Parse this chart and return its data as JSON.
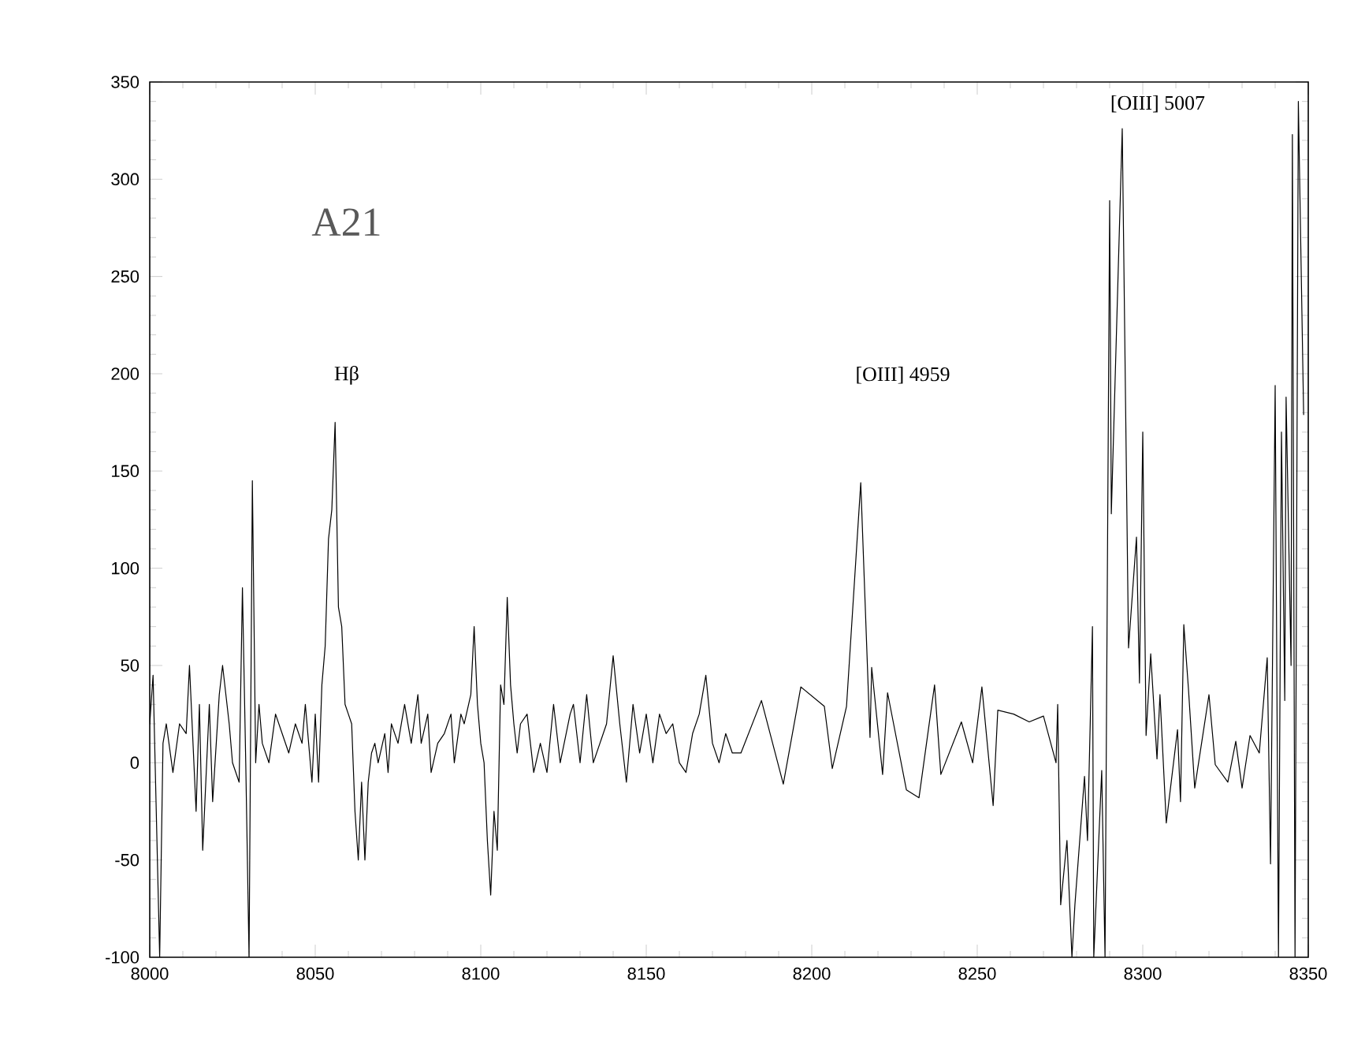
{
  "chart_data": {
    "type": "line",
    "xlim": [
      8000,
      8350
    ],
    "ylim": [
      -100,
      350
    ],
    "xticks": [
      8000,
      8050,
      8100,
      8150,
      8200,
      8250,
      8300,
      8350
    ],
    "yticks": [
      -100,
      -50,
      0,
      50,
      100,
      150,
      200,
      250,
      300,
      350
    ],
    "grid": false,
    "marker": "none",
    "line_style": "solid",
    "annotations": [
      "A21",
      "Hβ",
      "[OIII] 4959",
      "[OIII] 5007"
    ],
    "series": [
      {
        "color": "#000000",
        "x": [
          8000,
          8001,
          8003,
          8004,
          8005,
          8007,
          8009,
          8011,
          8012,
          8014,
          8015,
          8016,
          8018,
          8019,
          8021,
          8022,
          8024,
          8025,
          8027,
          8028,
          8029,
          8030,
          8031,
          8032,
          8033,
          8034,
          8036,
          8038,
          8040,
          8042,
          8044,
          8046,
          8047,
          8049,
          8050,
          8051,
          8052,
          8053,
          8054,
          8055,
          8056,
          8057,
          8058,
          8059,
          8060,
          8061,
          8062,
          8063,
          8064,
          8065,
          8066,
          8067,
          8068,
          8069,
          8071,
          8072,
          8073,
          8075,
          8077,
          8079,
          8081,
          8082,
          8084,
          8085,
          8087,
          8089,
          8091,
          8092,
          8094,
          8095,
          8097,
          8098,
          8099,
          8100,
          8101,
          8102,
          8103,
          8104,
          8105,
          8106,
          8107,
          8108,
          8109,
          8110,
          8111,
          8112,
          8114,
          8116,
          8118,
          8120,
          8122,
          8124,
          8127,
          8128,
          8130,
          8132,
          8134,
          8136,
          8138,
          8140,
          8142,
          8144,
          8146,
          8148,
          8150,
          8152,
          8154,
          8156,
          8158,
          8160,
          8162,
          8164,
          8166,
          8168,
          8170,
          8172,
          8174,
          8176,
          8178.6,
          8184.8,
          8191.4,
          8196.7,
          8203.8,
          8206.2,
          8210.5,
          8214.8,
          8217.6,
          8218.1,
          8221.4,
          8222.9,
          8228.6,
          8232.4,
          8237.1,
          8239,
          8245.2,
          8248.6,
          8251.4,
          8254.8,
          8256.2,
          8261,
          8265.7,
          8270,
          8273.8,
          8274.3,
          8275.2,
          8277.1,
          8278.6,
          8279.5,
          8282.4,
          8283.3,
          8284.8,
          8285.2,
          8287.6,
          8288.6,
          8290,
          8290.5,
          8293.8,
          8295.7,
          8298.1,
          8299,
          8300,
          8301,
          8302.4,
          8304.3,
          8305.2,
          8307.1,
          8310.5,
          8311.4,
          8312.4,
          8313.8,
          8315.7,
          8320,
          8321.9,
          8325.7,
          8328.1,
          8330,
          8332.4,
          8335.2,
          8337.6,
          8338.6,
          8340,
          8341,
          8341.9,
          8342.9,
          8343.3,
          8344.8,
          8345.2,
          8346,
          8347,
          8348.6
        ],
        "values": [
          20,
          45,
          -100,
          10,
          20,
          -5,
          20,
          15,
          50,
          -25,
          30,
          -45,
          30,
          -20,
          35,
          50,
          20,
          0,
          -10,
          90,
          0,
          -100,
          145,
          0,
          30,
          10,
          0,
          25,
          15,
          5,
          20,
          10,
          30,
          -10,
          25,
          -10,
          40,
          60,
          115,
          130,
          175,
          80,
          70,
          30,
          25,
          20,
          -25,
          -50,
          -10,
          -50,
          -10,
          5,
          10,
          0,
          15,
          -5,
          20,
          10,
          30,
          10,
          35,
          10,
          25,
          -5,
          10,
          15,
          25,
          0,
          25,
          20,
          35,
          70,
          30,
          10,
          0,
          -40,
          -68,
          -25,
          -45,
          40,
          30,
          85,
          40,
          20,
          5,
          20,
          25,
          -5,
          10,
          -5,
          30,
          0,
          25,
          30,
          0,
          35,
          0,
          10,
          20,
          55,
          20,
          -10,
          30,
          5,
          25,
          0,
          25,
          15,
          20,
          0,
          -5,
          15,
          25,
          45,
          10,
          0,
          15,
          5,
          5,
          32,
          -11,
          39,
          29,
          -3,
          29,
          144,
          13,
          49,
          -6,
          36,
          -14,
          -18,
          40,
          -6,
          21,
          0,
          39,
          -22,
          27,
          25,
          21,
          24,
          0,
          30,
          -73,
          -40,
          -100,
          -73,
          -7,
          -40,
          70,
          -100,
          -4,
          -100,
          289,
          128,
          326,
          59,
          116,
          41,
          170,
          14,
          56,
          2,
          35,
          -31,
          17,
          -20,
          71,
          38,
          -13,
          35,
          -1,
          -10,
          11,
          -13,
          14,
          5,
          54,
          -52,
          194,
          -100,
          170,
          32,
          188,
          50,
          323,
          -100,
          340,
          179
        ]
      }
    ]
  }
}
